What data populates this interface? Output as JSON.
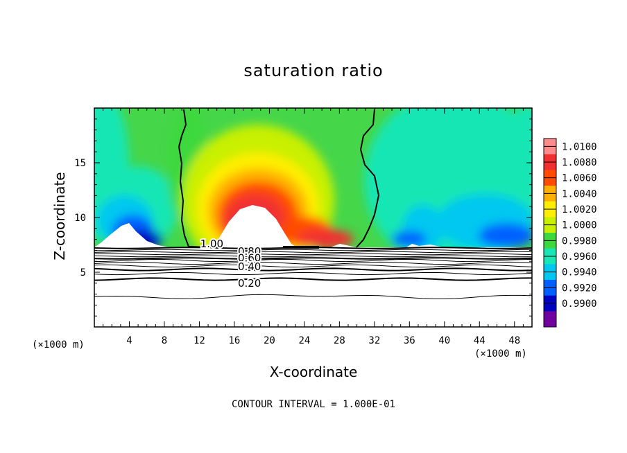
{
  "chart_data": {
    "type": "heatmap",
    "title": "saturation ratio",
    "xlabel": "X-coordinate",
    "ylabel": "Z-coordinate",
    "x_unit_label": "(×1000 m)",
    "x_unit_label_right": "(×1000 m)",
    "xlim": [
      0,
      50
    ],
    "ylim": [
      0,
      20
    ],
    "x_ticks": [
      4,
      8,
      12,
      16,
      20,
      24,
      28,
      32,
      36,
      40,
      44,
      48
    ],
    "y_ticks": [
      5,
      10,
      15
    ],
    "colorbar": {
      "levels": [
        "1.0100",
        "1.0080",
        "1.0060",
        "1.0040",
        "1.0020",
        "1.0000",
        "0.9980",
        "0.9960",
        "0.9940",
        "0.9920",
        "0.9900"
      ],
      "colors": [
        "#ff8c8c",
        "#f03030",
        "#ff4c00",
        "#ffb000",
        "#ffee00",
        "#c8f000",
        "#3cd83c",
        "#18e6b4",
        "#00c8f0",
        "#0060ff",
        "#0000c0",
        "#7000a0"
      ]
    },
    "contour_labels": [
      {
        "text": "1.00",
        "x": 12.1,
        "y": 7.6
      },
      {
        "text": "0.80",
        "x": 16.4,
        "y": 6.9
      },
      {
        "text": "0.60",
        "x": 16.4,
        "y": 6.3
      },
      {
        "text": "0.40",
        "x": 16.4,
        "y": 5.5
      },
      {
        "text": "0.20",
        "x": 16.4,
        "y": 4.0
      }
    ],
    "contour_interval": "CONTOUR INTERVAL = 1.000E-01"
  }
}
